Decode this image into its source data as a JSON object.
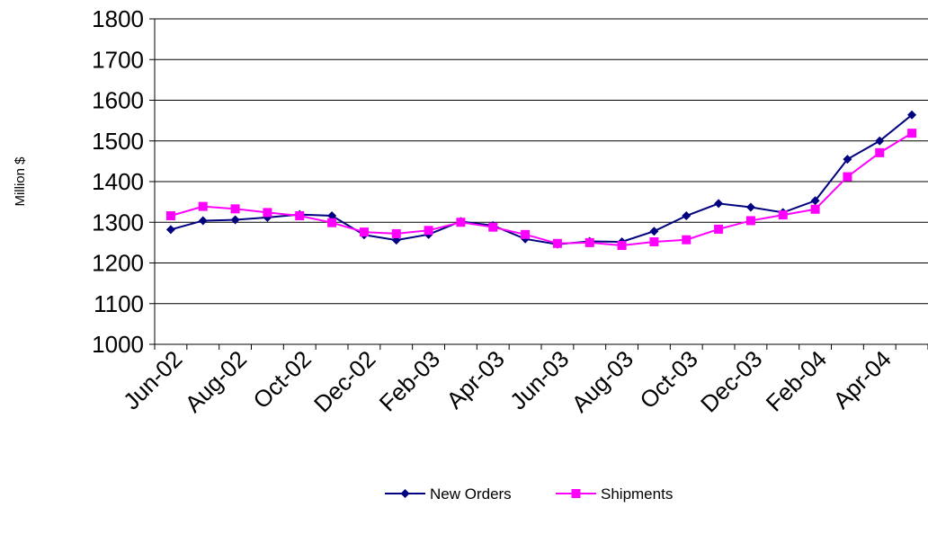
{
  "chart_data": {
    "type": "line",
    "title": "",
    "xlabel": "",
    "ylabel": "Million $",
    "ylim": [
      1000,
      1800
    ],
    "yticks": [
      "1000",
      "1100",
      "1200",
      "1300",
      "1400",
      "1500",
      "1600",
      "1700",
      "1800"
    ],
    "x": [
      "Jun-02",
      "Jul-02",
      "Aug-02",
      "Sep-02",
      "Oct-02",
      "Nov-02",
      "Dec-02",
      "Jan-03",
      "Feb-03",
      "Mar-03",
      "Apr-03",
      "May-03",
      "Jun-03",
      "Jul-03",
      "Aug-03",
      "Sep-03",
      "Oct-03",
      "Nov-03",
      "Dec-03",
      "Jan-04",
      "Feb-04",
      "Mar-04",
      "Apr-04",
      "May-04"
    ],
    "xtick_labels": [
      "Jun-02",
      "Aug-02",
      "Oct-02",
      "Dec-02",
      "Feb-03",
      "Apr-03",
      "Jun-03",
      "Aug-03",
      "Oct-03",
      "Dec-03",
      "Feb-04",
      "Apr-04"
    ],
    "grid": "horizontal",
    "legend_position": "bottom",
    "series": [
      {
        "name": "New Orders",
        "color": "#000080",
        "marker": "diamond",
        "values": [
          1282,
          1304,
          1306,
          1312,
          1319,
          1316,
          1269,
          1256,
          1270,
          1302,
          1292,
          1259,
          1246,
          1253,
          1252,
          1278,
          1316,
          1346,
          1337,
          1324,
          1353,
          1455,
          1500,
          1564
        ]
      },
      {
        "name": "Shipments",
        "color": "#FF00FF",
        "marker": "square",
        "values": [
          1316,
          1339,
          1333,
          1324,
          1316,
          1299,
          1276,
          1272,
          1280,
          1300,
          1288,
          1270,
          1248,
          1250,
          1243,
          1252,
          1257,
          1283,
          1304,
          1318,
          1332,
          1412,
          1471,
          1519
        ]
      }
    ]
  }
}
